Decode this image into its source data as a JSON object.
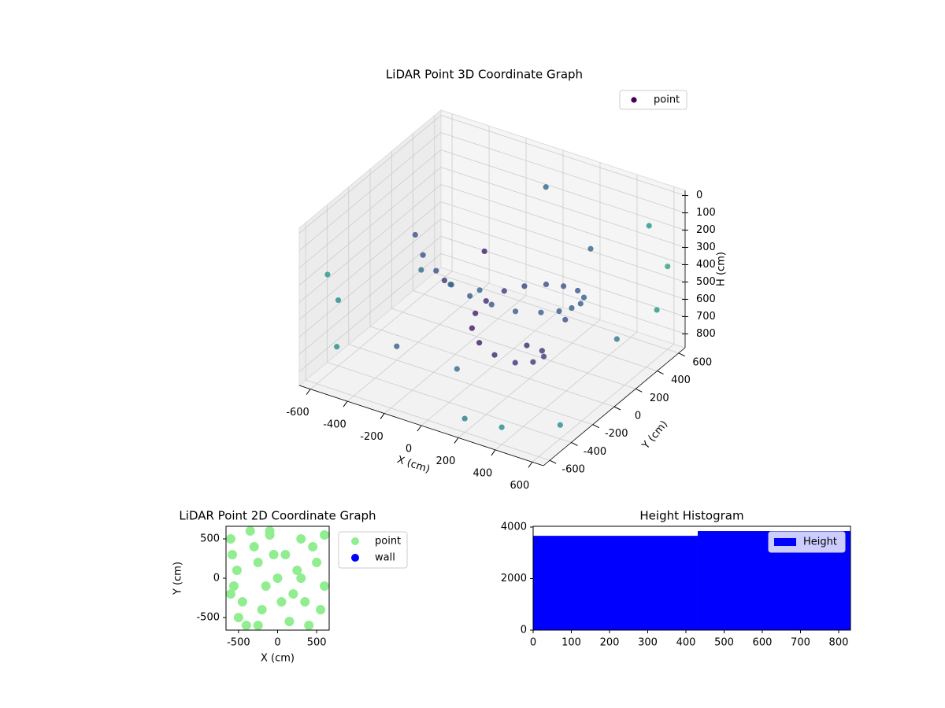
{
  "chart_data": [
    {
      "type": "scatter3d",
      "title": "LiDAR Point 3D Coordinate Graph",
      "xlabel": "X (cm)",
      "ylabel": "Y (cm)",
      "zlabel": "H (cm)",
      "xlim": [
        -660,
        660
      ],
      "ylim": [
        -660,
        660
      ],
      "zlim": [
        880,
        -30
      ],
      "xticks": [
        -600,
        -400,
        -200,
        0,
        200,
        400,
        600
      ],
      "yticks": [
        -600,
        -400,
        -200,
        0,
        200,
        400,
        600
      ],
      "zticks": [
        0,
        100,
        200,
        300,
        400,
        500,
        600,
        700,
        800
      ],
      "colormap": "viridis",
      "grid": true,
      "legend": "upper right",
      "series": [
        {
          "name": "point",
          "color": "#440154",
          "x": [
            -300,
            -200,
            -100,
            0,
            100,
            200,
            300,
            380,
            420,
            430,
            420,
            380,
            300,
            200,
            100,
            0,
            -80,
            -120,
            -120,
            -80,
            0,
            100,
            200,
            250,
            250,
            200,
            100,
            -600,
            -600,
            -550,
            600,
            600,
            500,
            -400,
            -300,
            200,
            400,
            600,
            -500,
            -200,
            300,
            0,
            -100,
            100,
            500,
            -400,
            250
          ],
          "y": [
            -200,
            -300,
            -350,
            -380,
            -380,
            -350,
            -300,
            -200,
            -100,
            0,
            100,
            200,
            280,
            320,
            330,
            300,
            250,
            150,
            50,
            -50,
            -120,
            -150,
            -130,
            -50,
            50,
            120,
            150,
            -500,
            -400,
            -500,
            600,
            500,
            600,
            300,
            400,
            -600,
            -600,
            -400,
            200,
            -100,
            400,
            500,
            100,
            -500,
            300,
            -200,
            250
          ],
          "z": [
            120,
            150,
            180,
            210,
            240,
            270,
            300,
            330,
            360,
            390,
            420,
            450,
            480,
            510,
            540,
            570,
            600,
            620,
            640,
            660,
            680,
            700,
            720,
            740,
            760,
            780,
            800,
            300,
            500,
            700,
            400,
            600,
            200,
            700,
            750,
            800,
            780,
            800,
            600,
            400,
            300,
            100,
            300,
            600,
            700,
            800,
            650
          ]
        }
      ]
    },
    {
      "type": "scatter",
      "title": "LiDAR Point 2D Coordinate Graph",
      "xlabel": "X (cm)",
      "ylabel": "Y (cm)",
      "xlim": [
        -660,
        660
      ],
      "ylim": [
        -660,
        660
      ],
      "xticks": [
        -500,
        0,
        500
      ],
      "yticks": [
        -500,
        0,
        500
      ],
      "legend": "outside right",
      "series": [
        {
          "name": "point",
          "color": "#90ee90",
          "x": [
            -600,
            -580,
            -520,
            -560,
            -450,
            -500,
            -400,
            -350,
            -300,
            -250,
            -200,
            -100,
            0,
            100,
            200,
            300,
            400,
            500,
            600,
            550,
            450,
            350,
            250,
            150,
            50,
            -50,
            -150,
            -250,
            600,
            -600,
            300,
            -100
          ],
          "values": [
            500,
            300,
            100,
            -100,
            -300,
            -500,
            -600,
            600,
            400,
            200,
            -400,
            550,
            0,
            300,
            -200,
            500,
            -600,
            200,
            -100,
            -400,
            400,
            -300,
            100,
            -550,
            -300,
            300,
            -100,
            -600,
            550,
            -200,
            0,
            600
          ]
        },
        {
          "name": "wall",
          "color": "#0000ff",
          "x": [],
          "values": []
        }
      ]
    },
    {
      "type": "histogram",
      "title": "Height Histogram",
      "xlim": [
        0,
        831
      ],
      "ylim": [
        0,
        4030
      ],
      "xticks": [
        0,
        100,
        200,
        300,
        400,
        500,
        600,
        700,
        800
      ],
      "yticks": [
        0,
        2000,
        4000
      ],
      "legend": "upper right",
      "bins": [
        0,
        431,
        831
      ],
      "series": [
        {
          "name": "Height",
          "color": "#0000ff",
          "values": [
            3660,
            3846
          ]
        }
      ]
    }
  ]
}
